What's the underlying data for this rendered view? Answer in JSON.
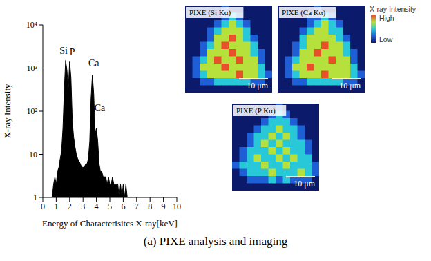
{
  "chart_data": [
    {
      "type": "area",
      "xlabel": "Energy of Characterisitcs X-ray[keV]",
      "ylabel": "X-ray Intensity",
      "log": "y",
      "color": "#000000",
      "x": [
        0.6,
        0.7,
        0.8,
        0.9,
        1.0,
        1.1,
        1.2,
        1.3,
        1.4,
        1.5,
        1.6,
        1.7,
        1.8,
        1.9,
        2.0,
        2.1,
        2.2,
        2.3,
        2.4,
        2.5,
        2.6,
        2.7,
        2.8,
        2.9,
        3.0,
        3.1,
        3.2,
        3.3,
        3.4,
        3.5,
        3.6,
        3.7,
        3.8,
        3.9,
        4.0,
        4.1,
        4.2,
        4.3,
        4.4,
        4.5,
        4.6,
        4.7,
        4.8,
        4.9,
        5.0,
        5.1,
        5.2,
        5.3,
        5.4,
        5.5,
        5.6,
        5.7,
        5.8,
        5.9,
        6.0,
        6.1,
        6.2,
        6.3,
        6.4,
        6.5,
        6.6,
        6.7,
        6.8,
        6.9,
        7.0
      ],
      "values": [
        1,
        1,
        2,
        3,
        2,
        4,
        5,
        8,
        12,
        40,
        300,
        1500,
        900,
        300,
        1400,
        600,
        60,
        25,
        15,
        10,
        8,
        7,
        6,
        5,
        5,
        5,
        6,
        6,
        8,
        20,
        200,
        700,
        250,
        30,
        40,
        20,
        6,
        4,
        4,
        3,
        3,
        3,
        2,
        3,
        2,
        2,
        3,
        2,
        2,
        2,
        2,
        1,
        2,
        1,
        2,
        1,
        2,
        1,
        1,
        1,
        1,
        1,
        1,
        1,
        1
      ],
      "xlim": [
        0,
        10
      ],
      "xticks": [
        0,
        1,
        2,
        3,
        4,
        5,
        6,
        7,
        8,
        9,
        10
      ],
      "ylim": [
        1,
        10000
      ],
      "yticks": [
        1,
        10,
        {
          "value": 100,
          "label": "10²"
        },
        {
          "value": 1000,
          "label": "10³"
        },
        {
          "value": 10000,
          "label": "10⁴"
        }
      ],
      "annotations": [
        {
          "text": "Si",
          "x": 1.55,
          "y": 2600
        },
        {
          "text": "P",
          "x": 2.2,
          "y": 2400
        },
        {
          "text": "Ca",
          "x": 3.8,
          "y": 1300
        },
        {
          "text": "Ca",
          "x": 4.25,
          "y": 120
        }
      ]
    },
    {
      "type": "heatmap",
      "title": "PIXE (Si Kα)",
      "scale_bar": "10 μm",
      "cells": [
        [
          0,
          0,
          0,
          0,
          0,
          1,
          0,
          0,
          0,
          0,
          0,
          0
        ],
        [
          0,
          0,
          0,
          0,
          0,
          1,
          2,
          1,
          0,
          0,
          0,
          0
        ],
        [
          0,
          0,
          0,
          0,
          1,
          2,
          3,
          2,
          1,
          0,
          0,
          0
        ],
        [
          0,
          0,
          0,
          1,
          2,
          3,
          3,
          3,
          2,
          0,
          0,
          0
        ],
        [
          0,
          0,
          0,
          1,
          3,
          3,
          4,
          3,
          2,
          1,
          0,
          0
        ],
        [
          0,
          0,
          1,
          2,
          3,
          4,
          3,
          3,
          3,
          2,
          0,
          0
        ],
        [
          0,
          0,
          1,
          3,
          3,
          3,
          4,
          3,
          3,
          2,
          1,
          0
        ],
        [
          0,
          1,
          2,
          3,
          4,
          3,
          3,
          4,
          3,
          3,
          1,
          0
        ],
        [
          0,
          1,
          3,
          3,
          3,
          4,
          3,
          3,
          3,
          3,
          2,
          0
        ],
        [
          0,
          1,
          2,
          3,
          3,
          3,
          3,
          4,
          3,
          3,
          2,
          1
        ],
        [
          0,
          0,
          1,
          1,
          2,
          2,
          2,
          2,
          2,
          1,
          1,
          0
        ],
        [
          0,
          0,
          0,
          0,
          0,
          0,
          0,
          0,
          0,
          0,
          0,
          0
        ]
      ]
    },
    {
      "type": "heatmap",
      "title": "PIXE (Ca Kα)",
      "scale_bar": "10 μm",
      "cells": [
        [
          0,
          0,
          0,
          0,
          0,
          1,
          0,
          0,
          0,
          0,
          0,
          0
        ],
        [
          0,
          0,
          0,
          0,
          1,
          1,
          2,
          1,
          0,
          0,
          0,
          0
        ],
        [
          0,
          0,
          0,
          0,
          1,
          2,
          3,
          2,
          1,
          0,
          0,
          0
        ],
        [
          0,
          0,
          0,
          1,
          2,
          3,
          3,
          2,
          2,
          0,
          0,
          0
        ],
        [
          0,
          0,
          0,
          2,
          3,
          3,
          3,
          3,
          2,
          1,
          0,
          0
        ],
        [
          0,
          0,
          1,
          2,
          3,
          3,
          4,
          3,
          3,
          2,
          0,
          0
        ],
        [
          0,
          0,
          1,
          3,
          3,
          4,
          3,
          3,
          3,
          2,
          1,
          0
        ],
        [
          0,
          1,
          2,
          3,
          3,
          3,
          3,
          4,
          3,
          3,
          1,
          0
        ],
        [
          0,
          1,
          3,
          3,
          4,
          3,
          3,
          3,
          3,
          3,
          2,
          0
        ],
        [
          0,
          1,
          2,
          3,
          3,
          3,
          4,
          3,
          3,
          3,
          2,
          1
        ],
        [
          0,
          0,
          1,
          1,
          2,
          2,
          2,
          2,
          2,
          1,
          1,
          0
        ],
        [
          0,
          0,
          0,
          0,
          0,
          0,
          0,
          0,
          0,
          0,
          0,
          0
        ]
      ]
    },
    {
      "type": "heatmap",
      "title": "PIXE (P Kα)",
      "scale_bar": "10 μm",
      "cells": [
        [
          0,
          0,
          0,
          0,
          0,
          0,
          1,
          0,
          0,
          0,
          0,
          0
        ],
        [
          0,
          0,
          0,
          0,
          0,
          1,
          2,
          1,
          0,
          0,
          0,
          0
        ],
        [
          0,
          0,
          0,
          0,
          1,
          2,
          2,
          2,
          1,
          0,
          0,
          0
        ],
        [
          0,
          0,
          0,
          1,
          2,
          2,
          3,
          2,
          2,
          1,
          0,
          0
        ],
        [
          0,
          0,
          1,
          2,
          2,
          3,
          2,
          3,
          2,
          1,
          0,
          0
        ],
        [
          0,
          0,
          1,
          2,
          3,
          2,
          3,
          2,
          2,
          2,
          1,
          0
        ],
        [
          0,
          1,
          2,
          2,
          2,
          3,
          2,
          3,
          2,
          2,
          1,
          0
        ],
        [
          0,
          1,
          2,
          3,
          2,
          2,
          3,
          2,
          3,
          2,
          2,
          0
        ],
        [
          1,
          2,
          2,
          2,
          3,
          2,
          2,
          3,
          2,
          2,
          2,
          1
        ],
        [
          0,
          1,
          2,
          2,
          2,
          3,
          2,
          2,
          2,
          3,
          2,
          1
        ],
        [
          0,
          0,
          1,
          1,
          1,
          2,
          1,
          2,
          1,
          1,
          1,
          0
        ],
        [
          0,
          0,
          0,
          0,
          0,
          0,
          0,
          0,
          0,
          0,
          0,
          0
        ]
      ]
    }
  ],
  "colorbar": {
    "title": "X-ray Intensity",
    "range": [
      0,
      4
    ],
    "ticks": [
      {
        "value": 0,
        "label": "Low"
      },
      {
        "value": 4,
        "label": "High"
      }
    ],
    "colors": [
      "#0b1a6b",
      "#1f5fd6",
      "#28c8d8",
      "#b6e03c",
      "#e8502a"
    ]
  },
  "caption": "(a) PIXE analysis and imaging"
}
